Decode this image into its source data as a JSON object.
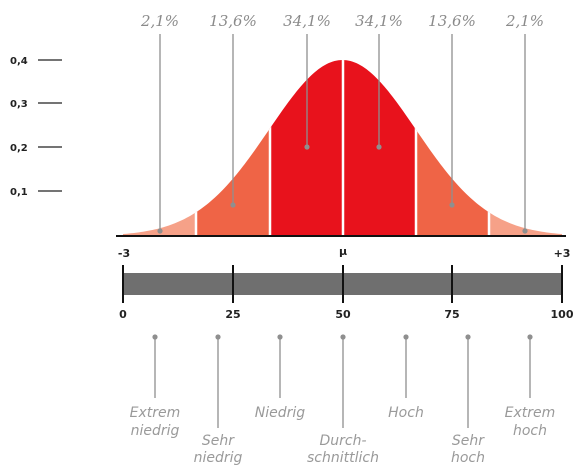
{
  "percentages": [
    "2,1%",
    "13,6%",
    "34,1%",
    "34,1%",
    "13,6%",
    "2,1%"
  ],
  "y_ticks": [
    {
      "label": "0,1",
      "value": 0.1
    },
    {
      "label": "0,2",
      "value": 0.2
    },
    {
      "label": "0,3",
      "value": 0.3
    },
    {
      "label": "0,4",
      "value": 0.4
    }
  ],
  "sigma_labels": {
    "left": "-3",
    "center": "μ",
    "right": "+3"
  },
  "scale_ticks": [
    "0",
    "25",
    "50",
    "75",
    "100"
  ],
  "categories": [
    {
      "line1": "Extrem",
      "line2": "niedrig"
    },
    {
      "line1": "Sehr",
      "line2": "niedrig"
    },
    {
      "line1": "Niedrig",
      "line2": ""
    },
    {
      "line1": "Durch-",
      "line2": "schnittlich"
    },
    {
      "line1": "Hoch",
      "line2": ""
    },
    {
      "line1": "Sehr",
      "line2": "hoch"
    },
    {
      "line1": "Extrem",
      "line2": "hoch"
    }
  ],
  "colors": {
    "band_outer": "#f6a188",
    "band_mid": "#ef6446",
    "band_inner": "#e8121c",
    "bar": "#6f6f6f",
    "lines": "#8f8f8f",
    "text_gray": "#8a8a8a"
  }
}
